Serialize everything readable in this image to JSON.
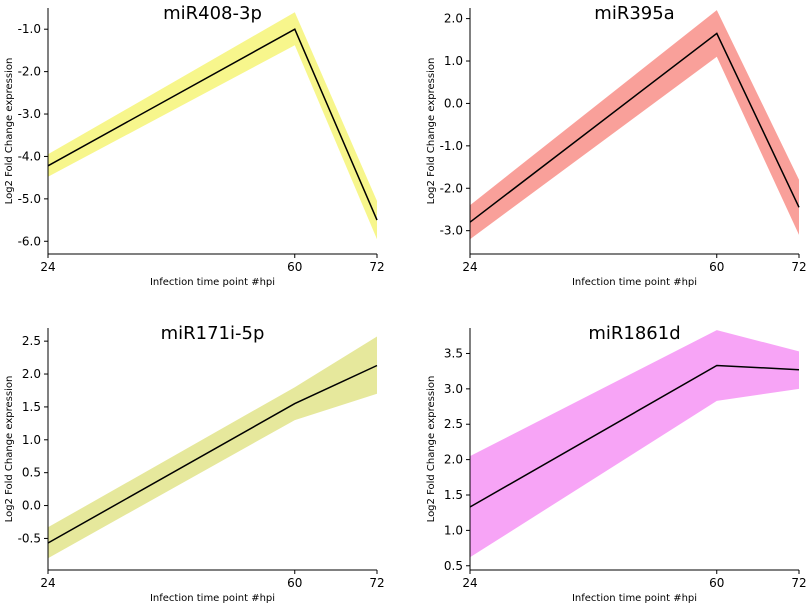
{
  "chart_data": [
    {
      "type": "line",
      "title": "miR408-3p",
      "xlabel": "Infection time point #hpi",
      "ylabel": "Log2 Fold Change expression",
      "x": [
        24,
        60,
        72
      ],
      "x_ticks": [
        "24",
        "60",
        "72"
      ],
      "series": [
        {
          "name": "mean",
          "values": [
            -4.22,
            -1.0,
            -5.5
          ]
        }
      ],
      "band": {
        "lower": [
          -4.48,
          -1.38,
          -5.95
        ],
        "upper": [
          -3.95,
          -0.6,
          -5.05
        ],
        "color": "#f7f68c"
      },
      "ylim": [
        -6.3,
        -0.5
      ],
      "y_ticks": [
        -1.0,
        -2.0,
        -3.0,
        -4.0,
        -5.0,
        -6.0
      ],
      "y_tick_labels": [
        "-1.0",
        "-2.0",
        "-3.0",
        "-4.0",
        "-5.0",
        "-6.0"
      ]
    },
    {
      "type": "line",
      "title": "miR395a",
      "xlabel": "Infection time point #hpi",
      "ylabel": "Log2 Fold Change expression",
      "x": [
        24,
        60,
        72
      ],
      "x_ticks": [
        "24",
        "60",
        "72"
      ],
      "series": [
        {
          "name": "mean",
          "values": [
            -2.8,
            1.65,
            -2.45
          ]
        }
      ],
      "band": {
        "lower": [
          -3.2,
          1.1,
          -3.1
        ],
        "upper": [
          -2.4,
          2.2,
          -1.8
        ],
        "color": "#f9a09a"
      },
      "ylim": [
        -3.55,
        2.25
      ],
      "y_ticks": [
        2.0,
        1.0,
        0.0,
        -1.0,
        -2.0,
        -3.0
      ],
      "y_tick_labels": [
        "2.0",
        "1.0",
        "0.0",
        "-1.0",
        "-2.0",
        "-3.0"
      ]
    },
    {
      "type": "line",
      "title": "miR171i-5p",
      "xlabel": "Infection time point #hpi",
      "ylabel": "Log2 Fold Change expression",
      "x": [
        24,
        60,
        72
      ],
      "x_ticks": [
        "24",
        "60",
        "72"
      ],
      "series": [
        {
          "name": "mean",
          "values": [
            -0.57,
            1.55,
            2.13
          ]
        }
      ],
      "band": {
        "lower": [
          -0.8,
          1.3,
          1.7
        ],
        "upper": [
          -0.33,
          1.8,
          2.57
        ],
        "color": "#e6e89c"
      },
      "ylim": [
        -0.98,
        2.7
      ],
      "y_ticks": [
        2.5,
        2.0,
        1.5,
        1.0,
        0.5,
        0.0,
        -0.5
      ],
      "y_tick_labels": [
        "2.5",
        "2.0",
        "1.5",
        "1.0",
        "0.5",
        "0.0",
        "-0.5"
      ]
    },
    {
      "type": "line",
      "title": "miR1861d",
      "xlabel": "Infection time point #hpi",
      "ylabel": "Log2 Fold Change expression",
      "x": [
        24,
        60,
        72
      ],
      "x_ticks": [
        "24",
        "60",
        "72"
      ],
      "series": [
        {
          "name": "mean",
          "values": [
            1.33,
            3.33,
            3.27
          ]
        }
      ],
      "band": {
        "lower": [
          0.62,
          2.83,
          3.0
        ],
        "upper": [
          2.05,
          3.83,
          3.53
        ],
        "color": "#f7a4f6"
      },
      "ylim": [
        0.44,
        3.86
      ],
      "y_ticks": [
        3.5,
        3.0,
        2.5,
        2.0,
        1.5,
        1.0,
        0.5
      ],
      "y_tick_labels": [
        "3.5",
        "3.0",
        "2.5",
        "2.0",
        "1.5",
        "1.0",
        "0.5"
      ]
    }
  ]
}
